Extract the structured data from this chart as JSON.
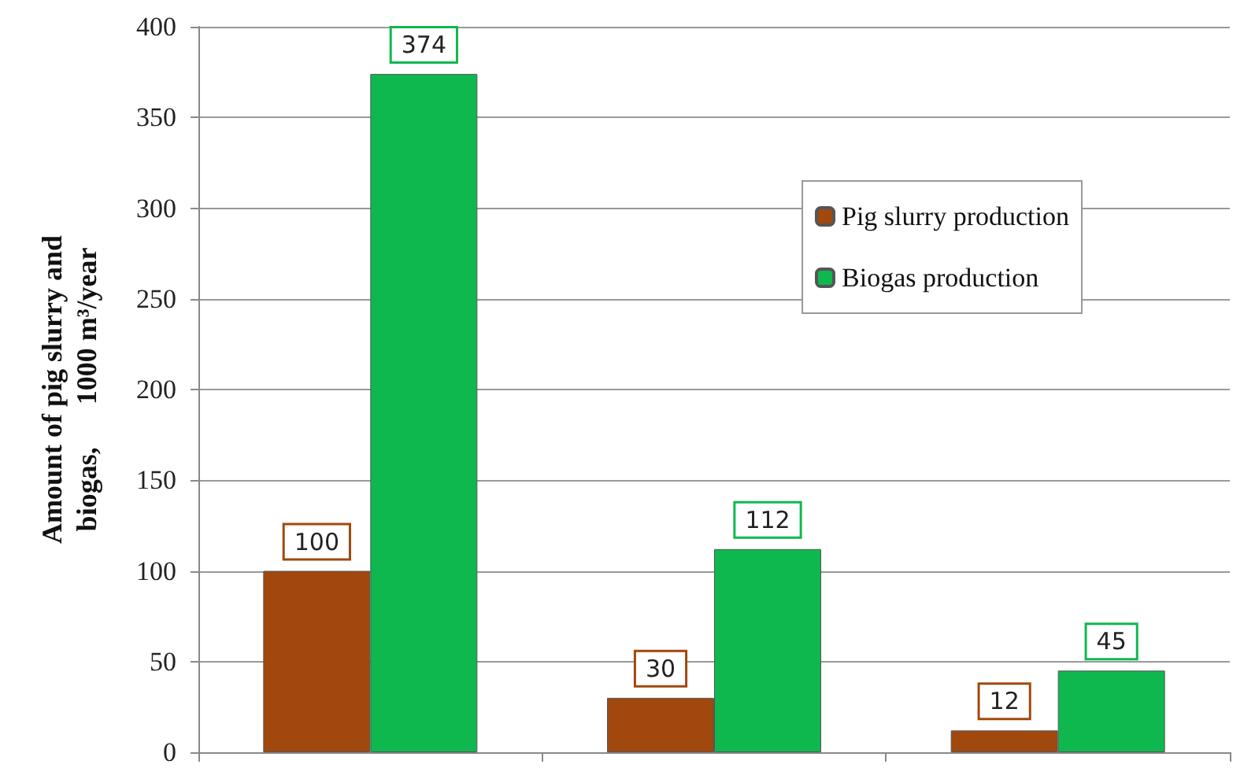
{
  "chart_data": {
    "type": "bar",
    "ylabel": "Amount of pig slurry and\nbiogas,      1000 m³/year",
    "categories": [
      null,
      null,
      null
    ],
    "series": [
      {
        "name": "Pig slurry production",
        "color": "#a0480e",
        "values": [
          100,
          30,
          12
        ]
      },
      {
        "name": "Biogas production",
        "color": "#0fb84f",
        "values": [
          374,
          112,
          45
        ]
      }
    ],
    "ylim": [
      0,
      400
    ],
    "yticks": [
      0,
      50,
      100,
      150,
      200,
      250,
      300,
      350,
      400
    ],
    "grid": "y",
    "legend": "right",
    "data_labels": true
  }
}
